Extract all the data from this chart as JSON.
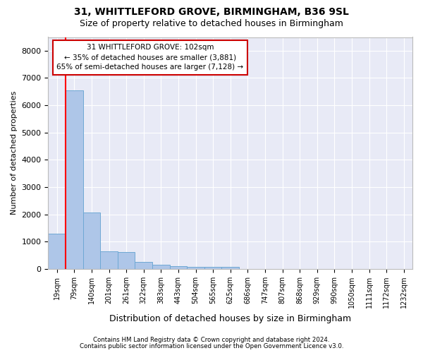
{
  "title": "31, WHITTLEFORD GROVE, BIRMINGHAM, B36 9SL",
  "subtitle": "Size of property relative to detached houses in Birmingham",
  "xlabel": "Distribution of detached houses by size in Birmingham",
  "ylabel": "Number of detached properties",
  "footnote1": "Contains HM Land Registry data © Crown copyright and database right 2024.",
  "footnote2": "Contains public sector information licensed under the Open Government Licence v3.0.",
  "bin_labels": [
    "19sqm",
    "79sqm",
    "140sqm",
    "201sqm",
    "261sqm",
    "322sqm",
    "383sqm",
    "443sqm",
    "504sqm",
    "565sqm",
    "625sqm",
    "686sqm",
    "747sqm",
    "807sqm",
    "868sqm",
    "929sqm",
    "990sqm",
    "1050sqm",
    "1111sqm",
    "1172sqm",
    "1232sqm"
  ],
  "bar_values": [
    1300,
    6550,
    2080,
    650,
    620,
    260,
    150,
    110,
    80,
    80,
    80,
    0,
    0,
    0,
    0,
    0,
    0,
    0,
    0,
    0,
    0
  ],
  "bar_color": "#aec6e8",
  "bar_edge_color": "#6fa8d4",
  "red_line_x": 0.5,
  "annotation_title": "31 WHITTLEFORD GROVE: 102sqm",
  "annotation_line1": "← 35% of detached houses are smaller (3,881)",
  "annotation_line2": "65% of semi-detached houses are larger (7,128) →",
  "annotation_box_color": "#cc0000",
  "ylim": [
    0,
    8500
  ],
  "yticks": [
    0,
    1000,
    2000,
    3000,
    4000,
    5000,
    6000,
    7000,
    8000
  ],
  "bg_color": "#e8eaf6",
  "grid_color": "#ffffff",
  "title_fontsize": 10,
  "subtitle_fontsize": 9,
  "ann_fontsize": 7.5,
  "xlabel_fontsize": 9,
  "ylabel_fontsize": 8,
  "tick_fontsize": 8
}
